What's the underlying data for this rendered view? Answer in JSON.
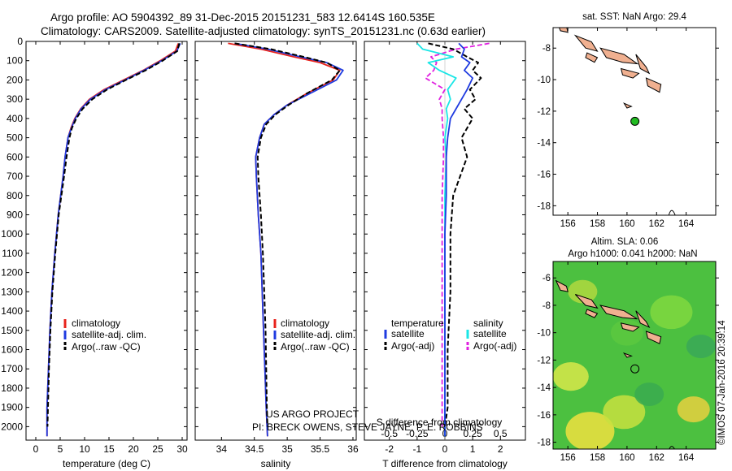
{
  "header": {
    "line1": "Argo profile: AO 5904392_89 31-Dec-2015 20151231_583 12.6414S 160.535E",
    "line2": "Climatology: CARS2009. Satellite-adjusted climatology: synTS_20151231.nc (0.63d earlier)"
  },
  "colors": {
    "red": "#e8231c",
    "blue": "#1f3be0",
    "black": "#000000",
    "cyan": "#19e6e6",
    "magenta": "#e020e0",
    "land": "#f0b090",
    "argo_dot": "#22bb22"
  },
  "chart_data": [
    {
      "type": "line",
      "id": "temperature",
      "xlabel": "temperature (deg C)",
      "ylabel": "",
      "xlim": [
        -2,
        31
      ],
      "ylim": [
        2070,
        0
      ],
      "xticks": [
        0,
        5,
        10,
        15,
        20,
        25,
        30
      ],
      "yticks": [
        0,
        100,
        200,
        300,
        400,
        500,
        600,
        700,
        800,
        900,
        1000,
        1100,
        1200,
        1300,
        1400,
        1500,
        1600,
        1700,
        1800,
        1900,
        2000
      ],
      "legend": [
        "climatology",
        "satellite-adj. clim.",
        "Argo(..raw -QC)"
      ],
      "series": [
        {
          "name": "climatology",
          "color": "red",
          "x": [
            29.2,
            28.6,
            25.5,
            22,
            18,
            14,
            11,
            9.2,
            8,
            7.2,
            6.6,
            6.0,
            5.6,
            4.6,
            3.9,
            3.3,
            2.9,
            2.6,
            2.3,
            2.3
          ],
          "y": [
            10,
            50,
            100,
            150,
            200,
            250,
            300,
            350,
            400,
            450,
            500,
            600,
            700,
            900,
            1100,
            1300,
            1500,
            1700,
            1900,
            2050
          ]
        },
        {
          "name": "satellite-adj. clim.",
          "color": "blue",
          "x": [
            29.6,
            28.9,
            25.8,
            22.2,
            18.3,
            14.3,
            11.2,
            9.3,
            8.1,
            7.3,
            6.6,
            6.0,
            5.6,
            4.6,
            3.9,
            3.3,
            2.9,
            2.6,
            2.3,
            2.3
          ],
          "y": [
            10,
            50,
            100,
            150,
            200,
            250,
            300,
            350,
            400,
            450,
            500,
            600,
            700,
            900,
            1100,
            1300,
            1500,
            1700,
            1900,
            2050
          ]
        },
        {
          "name": "Argo(..raw -QC)",
          "color": "black",
          "x": [
            29.4,
            29.0,
            26.0,
            22.5,
            18.5,
            14.6,
            11.6,
            9.6,
            8.3,
            7.4,
            6.9,
            6.3,
            5.8,
            4.7,
            4.0,
            3.4,
            3.0,
            2.7,
            2.5,
            2.4
          ],
          "y": [
            10,
            50,
            100,
            150,
            200,
            250,
            300,
            350,
            400,
            450,
            500,
            600,
            700,
            900,
            1100,
            1300,
            1500,
            1700,
            1900,
            2000
          ]
        }
      ]
    },
    {
      "type": "line",
      "id": "salinity",
      "xlabel": "salinity",
      "ylabel": "",
      "xlim": [
        33.6,
        36.05
      ],
      "ylim": [
        2070,
        0
      ],
      "xticks": [
        34,
        34.5,
        35,
        35.5,
        36
      ],
      "legend": [
        "climatology",
        "satellite-adj. clim.",
        "Argo(..raw -QC)"
      ],
      "series": [
        {
          "name": "climatology",
          "color": "red",
          "x": [
            34.1,
            34.6,
            35.1,
            35.5,
            35.8,
            35.7,
            35.3,
            35.0,
            34.8,
            34.65,
            34.58,
            34.52,
            34.53,
            34.56,
            34.6,
            34.62,
            34.64,
            34.66,
            34.68,
            34.7
          ],
          "y": [
            10,
            40,
            80,
            110,
            150,
            200,
            270,
            330,
            380,
            430,
            500,
            600,
            700,
            900,
            1100,
            1300,
            1500,
            1700,
            1900,
            2050
          ]
        },
        {
          "name": "satellite-adj. clim.",
          "color": "blue",
          "x": [
            34.2,
            34.7,
            35.2,
            35.6,
            35.85,
            35.75,
            35.35,
            35.0,
            34.8,
            34.65,
            34.58,
            34.52,
            34.53,
            34.56,
            34.6,
            34.62,
            34.64,
            34.66,
            34.68,
            34.7
          ],
          "y": [
            10,
            40,
            80,
            110,
            150,
            200,
            270,
            330,
            380,
            430,
            500,
            600,
            700,
            900,
            1100,
            1300,
            1500,
            1700,
            1900,
            2050
          ]
        },
        {
          "name": "Argo(..raw -QC)",
          "color": "black",
          "x": [
            34.2,
            34.75,
            35.25,
            35.6,
            35.8,
            35.68,
            35.3,
            35.02,
            34.82,
            34.68,
            34.6,
            34.55,
            34.56,
            34.6,
            34.63,
            34.65,
            34.67,
            34.68,
            34.69,
            34.7
          ],
          "y": [
            10,
            40,
            80,
            110,
            150,
            200,
            270,
            330,
            380,
            430,
            500,
            600,
            700,
            900,
            1100,
            1300,
            1500,
            1700,
            1900,
            2000
          ]
        }
      ],
      "annotation": [
        "US ARGO PROJECT",
        "PI: BRECK OWENS, STEVE JAYNE, P. E. ROBBINS"
      ]
    },
    {
      "type": "line",
      "id": "difference",
      "xlabel": "T difference from climatology",
      "xlabel_top": "S difference from climatology",
      "xlim": [
        -2.9,
        2.9
      ],
      "ylim": [
        2070,
        0
      ],
      "xticks": [
        -2,
        -1,
        0,
        1,
        2
      ],
      "xticks_top": [
        -0.5,
        -0.25,
        0,
        0.25,
        0.5
      ],
      "legend_headers": [
        "temperature",
        "salinity"
      ],
      "legend": [
        "satellite",
        "Argo(-adj)",
        "satellite",
        "Argo(-adj)"
      ],
      "series": [
        {
          "name": "T satellite",
          "color": "blue",
          "x": [
            0.5,
            0.7,
            0.6,
            0.9,
            0.7,
            1.0,
            0.8,
            0.6,
            0.4,
            0.2,
            0.1,
            0.05,
            0.05,
            0.0,
            0.0,
            0.0,
            0.0,
            0.0
          ],
          "y": [
            10,
            40,
            80,
            110,
            150,
            190,
            250,
            300,
            350,
            400,
            500,
            600,
            800,
            1000,
            1300,
            1600,
            1900,
            2050
          ]
        },
        {
          "name": "T Argo(-adj)",
          "color": "black",
          "x": [
            -0.6,
            0.3,
            0.8,
            1.2,
            1.0,
            1.3,
            0.9,
            1.1,
            0.7,
            1.0,
            0.6,
            0.8,
            0.3,
            0.2,
            0.2,
            0.1,
            0.1,
            0.0
          ],
          "y": [
            10,
            40,
            80,
            110,
            150,
            190,
            250,
            300,
            350,
            400,
            500,
            600,
            800,
            1000,
            1300,
            1600,
            1900,
            2000
          ]
        },
        {
          "name": "S satellite",
          "color": "cyan",
          "x": [
            -1.0,
            -0.8,
            0.3,
            -0.6,
            -0.2,
            0.4,
            0.1,
            0.2,
            0.05,
            0.1,
            0.0,
            0.05,
            0.0,
            0.0,
            0.0,
            0.0,
            0.0,
            0.0
          ],
          "y": [
            10,
            40,
            80,
            110,
            150,
            190,
            250,
            300,
            350,
            400,
            500,
            600,
            800,
            1000,
            1300,
            1600,
            1900,
            2050
          ]
        },
        {
          "name": "S Argo(-adj)",
          "color": "magenta",
          "x": [
            1.6,
            0.4,
            -0.5,
            -0.3,
            -0.4,
            -0.7,
            0.0,
            -0.2,
            -0.1,
            -0.1,
            -0.05,
            -0.05,
            -0.1,
            -0.1,
            -0.1,
            -0.1,
            -0.1,
            -0.1
          ],
          "y": [
            10,
            40,
            80,
            110,
            150,
            190,
            250,
            300,
            350,
            400,
            500,
            600,
            800,
            1000,
            1300,
            1600,
            1900,
            2000
          ]
        }
      ]
    }
  ],
  "maps": {
    "top": {
      "title": "sat. SST: NaN Argo: 29.4",
      "xticks": [
        156,
        158,
        160,
        162,
        164
      ],
      "yticks": [
        -8,
        -10,
        -12,
        -14,
        -16,
        -18
      ],
      "lon_range": [
        155,
        166
      ],
      "lat_range": [
        -18.6,
        -6.7
      ],
      "argo_point": {
        "lon": 160.535,
        "lat": -12.6414
      }
    },
    "bottom": {
      "title_line1": "Altim. SLA: 0.06",
      "title_line2": "Argo h1000: 0.041 h2000: NaN",
      "xticks": [
        156,
        158,
        160,
        162,
        164
      ],
      "yticks": [
        -6,
        -8,
        -10,
        -12,
        -14,
        -16,
        -18
      ],
      "lon_range": [
        155,
        166
      ],
      "lat_range": [
        -18.5,
        -4.8
      ],
      "argo_point": {
        "lon": 160.535,
        "lat": -12.6414
      }
    }
  },
  "footer": {
    "credit": "©IMOS 07-Jan-2016 20:39:14"
  }
}
